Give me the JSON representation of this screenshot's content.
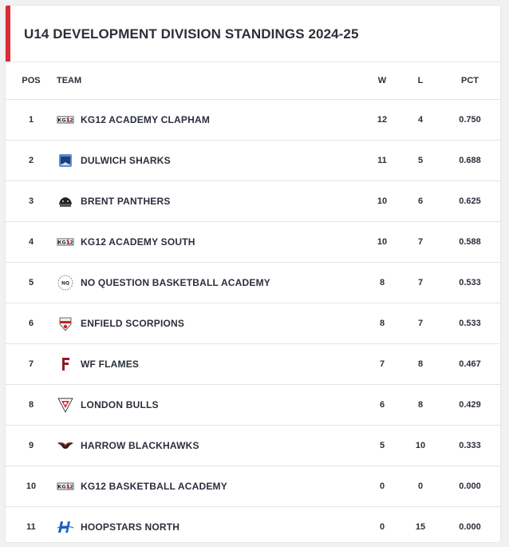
{
  "title": "U14 DEVELOPMENT DIVISION STANDINGS 2024-25",
  "columns": {
    "pos": "POS",
    "team": "TEAM",
    "w": "W",
    "l": "L",
    "pct": "PCT"
  },
  "rows": [
    {
      "pos": "1",
      "team": "KG12 ACADEMY CLAPHAM",
      "w": "12",
      "l": "4",
      "pct": "0.750",
      "logo": "kg12-logo"
    },
    {
      "pos": "2",
      "team": "DULWICH SHARKS",
      "w": "11",
      "l": "5",
      "pct": "0.688",
      "logo": "dulwich-sharks-logo"
    },
    {
      "pos": "3",
      "team": "BRENT PANTHERS",
      "w": "10",
      "l": "6",
      "pct": "0.625",
      "logo": "brent-panthers-logo"
    },
    {
      "pos": "4",
      "team": "KG12 ACADEMY SOUTH",
      "w": "10",
      "l": "7",
      "pct": "0.588",
      "logo": "kg12-logo"
    },
    {
      "pos": "5",
      "team": "NO QUESTION BASKETBALL ACADEMY",
      "w": "8",
      "l": "7",
      "pct": "0.533",
      "logo": "no-question-logo"
    },
    {
      "pos": "6",
      "team": "ENFIELD SCORPIONS",
      "w": "8",
      "l": "7",
      "pct": "0.533",
      "logo": "enfield-scorpions-logo"
    },
    {
      "pos": "7",
      "team": "WF FLAMES",
      "w": "7",
      "l": "8",
      "pct": "0.467",
      "logo": "wf-flames-logo"
    },
    {
      "pos": "8",
      "team": "LONDON BULLS",
      "w": "6",
      "l": "8",
      "pct": "0.429",
      "logo": "london-bulls-logo"
    },
    {
      "pos": "9",
      "team": "HARROW BLACKHAWKS",
      "w": "5",
      "l": "10",
      "pct": "0.333",
      "logo": "harrow-blackhawks-logo"
    },
    {
      "pos": "10",
      "team": "KG12 BASKETBALL ACADEMY",
      "w": "0",
      "l": "0",
      "pct": "0.000",
      "logo": "kg12-logo"
    },
    {
      "pos": "11",
      "team": "HOOPSTARS NORTH",
      "w": "0",
      "l": "15",
      "pct": "0.000",
      "logo": "hoopstars-north-logo"
    }
  ],
  "colors": {
    "accent": "#d82c36",
    "text": "#2a2f3a",
    "divider": "#e4e4e4",
    "background": "#f1f1f1"
  }
}
